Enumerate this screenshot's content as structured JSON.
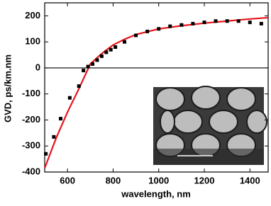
{
  "chart_data": {
    "type": "scatter",
    "x_label": "wavelength, nm",
    "y_label": "GVD, ps/km.nm",
    "xlim": [
      500,
      1480
    ],
    "xticks": [
      600,
      800,
      1000,
      1200,
      1400
    ],
    "ylim": [
      -400,
      250
    ],
    "yticks": [
      -400,
      -300,
      -200,
      -100,
      0,
      100,
      200
    ],
    "hline": 0,
    "series": [
      {
        "type": "scatter",
        "color": "#000000",
        "x": [
          505,
          540,
          570,
          610,
          650,
          670,
          690,
          710,
          730,
          750,
          770,
          790,
          810,
          850,
          900,
          950,
          1000,
          1050,
          1100,
          1150,
          1200,
          1250,
          1300,
          1350,
          1400,
          1450
        ],
        "values": [
          -330,
          -265,
          -195,
          -115,
          -70,
          -10,
          5,
          15,
          30,
          45,
          60,
          70,
          80,
          100,
          125,
          140,
          150,
          160,
          165,
          170,
          175,
          180,
          180,
          180,
          175,
          170
        ]
      },
      {
        "type": "line",
        "color": "#e8141c",
        "x": [
          500,
          550,
          600,
          650,
          700,
          750,
          800,
          850,
          900,
          1000,
          1100,
          1200,
          1300,
          1400,
          1480
        ],
        "values": [
          -385,
          -270,
          -170,
          -80,
          15,
          55,
          88,
          110,
          128,
          150,
          162,
          172,
          180,
          188,
          193
        ]
      }
    ]
  }
}
